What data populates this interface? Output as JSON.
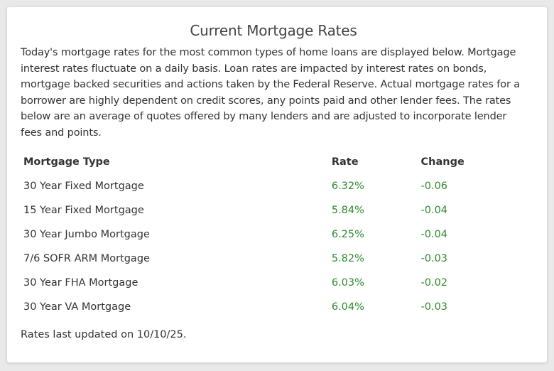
{
  "title": "Current Mortgage Rates",
  "intro": "Today's mortgage rates for the most common types of home loans are displayed below. Mortgage interest rates fluctuate on a daily basis. Loan rates are impacted by interest rates on bonds, mortgage backed securities and actions taken by the Federal Reserve. Actual mortgage rates for a borrower are highly dependent on credit scores, any points paid and other lender fees. The rates below are an average of quotes offered by many lenders and are adjusted to incorporate lender fees and points.",
  "table": {
    "headers": [
      "Mortgage Type",
      "Rate",
      "Change"
    ],
    "rows": [
      {
        "type": "30 Year Fixed Mortgage",
        "rate": "6.32%",
        "change": "-0.06"
      },
      {
        "type": "15 Year Fixed Mortgage",
        "rate": "5.84%",
        "change": "-0.04"
      },
      {
        "type": "30 Year Jumbo Mortgage",
        "rate": "6.25%",
        "change": "-0.04"
      },
      {
        "type": "7/6 SOFR ARM Mortgage",
        "rate": "5.82%",
        "change": "-0.03"
      },
      {
        "type": "30 Year FHA Mortgage",
        "rate": "6.03%",
        "change": "-0.02"
      },
      {
        "type": "30 Year VA Mortgage",
        "rate": "6.04%",
        "change": "-0.03"
      }
    ]
  },
  "footer": "Rates last updated on 10/10/25.",
  "colors": {
    "value_green": "#2e8b2e",
    "text": "#333333",
    "background": "#e9e9e9"
  }
}
